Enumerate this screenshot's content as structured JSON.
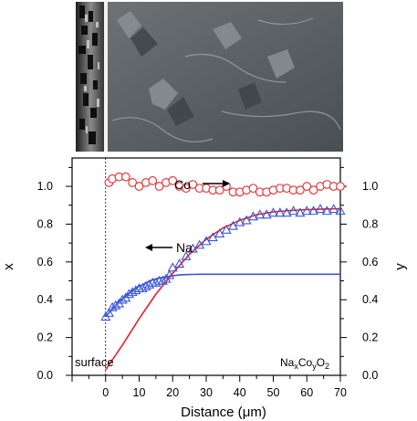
{
  "image": {
    "kind": "sem-cross-section-micrograph"
  },
  "chart_data": {
    "type": "scatter",
    "xlabel": "Distance (",
    "xlabel_unit": "μm",
    "xlabel_close": ")",
    "ylabel_left": "x",
    "ylabel_right": "y",
    "xlim": [
      -10,
      70
    ],
    "ylim": [
      0,
      1.15
    ],
    "x_ticks": [
      "0",
      "10",
      "20",
      "30",
      "40",
      "50",
      "60",
      "70"
    ],
    "y_ticks": [
      "0.0",
      "0.2",
      "0.4",
      "0.6",
      "0.8",
      "1.0"
    ],
    "grid": false,
    "surface_line_x": 0,
    "annotations": {
      "co_label": "Co",
      "na_label": "Na",
      "surface_label": "surface",
      "formula": {
        "na": "Na",
        "x_sub": "x",
        "co": "Co",
        "y_sub": "y",
        "o": "O",
        "o_sub": "2"
      }
    },
    "series": [
      {
        "name": "Co",
        "marker": "circle",
        "color": "#e8383d",
        "x": [
          1,
          2,
          4,
          6,
          8,
          10,
          12,
          14,
          16,
          18,
          20,
          22,
          24,
          26,
          28,
          30,
          32,
          34,
          36,
          38,
          40,
          42,
          44,
          46,
          48,
          50,
          52,
          54,
          56,
          58,
          60,
          62,
          64,
          66,
          68,
          70
        ],
        "y": [
          1.02,
          1.04,
          1.05,
          1.05,
          1.02,
          1.0,
          1.02,
          1.03,
          1.0,
          1.02,
          1.03,
          1.0,
          0.99,
          1.01,
          0.99,
          0.99,
          0.98,
          0.98,
          1.0,
          0.97,
          0.97,
          0.98,
          0.99,
          0.97,
          0.97,
          0.98,
          0.99,
          0.99,
          0.98,
          0.98,
          1.0,
          0.98,
          1.0,
          1.01,
          1.0,
          1.0
        ]
      },
      {
        "name": "Na",
        "marker": "triangle",
        "color": "#3a55d8",
        "x": [
          0,
          1,
          2,
          3,
          4,
          5,
          6,
          7,
          8,
          9,
          10,
          11,
          12,
          13,
          14,
          15,
          16,
          17,
          18,
          19,
          20,
          22,
          24,
          26,
          28,
          30,
          32,
          34,
          36,
          38,
          40,
          42,
          44,
          46,
          48,
          50,
          52,
          54,
          56,
          58,
          60,
          62,
          64,
          66,
          68,
          70
        ],
        "y": [
          0.31,
          0.33,
          0.36,
          0.37,
          0.38,
          0.4,
          0.41,
          0.43,
          0.44,
          0.45,
          0.46,
          0.46,
          0.47,
          0.48,
          0.49,
          0.49,
          0.5,
          0.5,
          0.51,
          0.53,
          0.57,
          0.59,
          0.63,
          0.67,
          0.69,
          0.71,
          0.73,
          0.75,
          0.77,
          0.79,
          0.81,
          0.82,
          0.84,
          0.85,
          0.85,
          0.86,
          0.86,
          0.86,
          0.87,
          0.86,
          0.87,
          0.87,
          0.88,
          0.87,
          0.88,
          0.87
        ]
      },
      {
        "name": "Na fit (near surface)",
        "marker": "line",
        "color": "#3a55d8",
        "x": [
          0,
          2,
          4,
          6,
          8,
          10,
          12,
          14,
          16,
          18,
          20,
          22,
          24,
          26,
          28,
          30,
          40,
          50,
          60,
          70
        ],
        "y": [
          0.31,
          0.35,
          0.39,
          0.42,
          0.45,
          0.47,
          0.49,
          0.505,
          0.515,
          0.522,
          0.527,
          0.531,
          0.533,
          0.534,
          0.535,
          0.535,
          0.535,
          0.535,
          0.535,
          0.535
        ]
      },
      {
        "name": "Na fit (diffusion profile)",
        "marker": "line",
        "color": "#e8202a",
        "x": [
          0,
          5,
          10,
          15,
          20,
          25,
          30,
          35,
          40,
          45,
          50,
          55,
          60,
          65,
          70
        ],
        "y": [
          0.03,
          0.16,
          0.3,
          0.43,
          0.54,
          0.64,
          0.72,
          0.78,
          0.82,
          0.85,
          0.865,
          0.872,
          0.877,
          0.88,
          0.882
        ]
      }
    ]
  }
}
